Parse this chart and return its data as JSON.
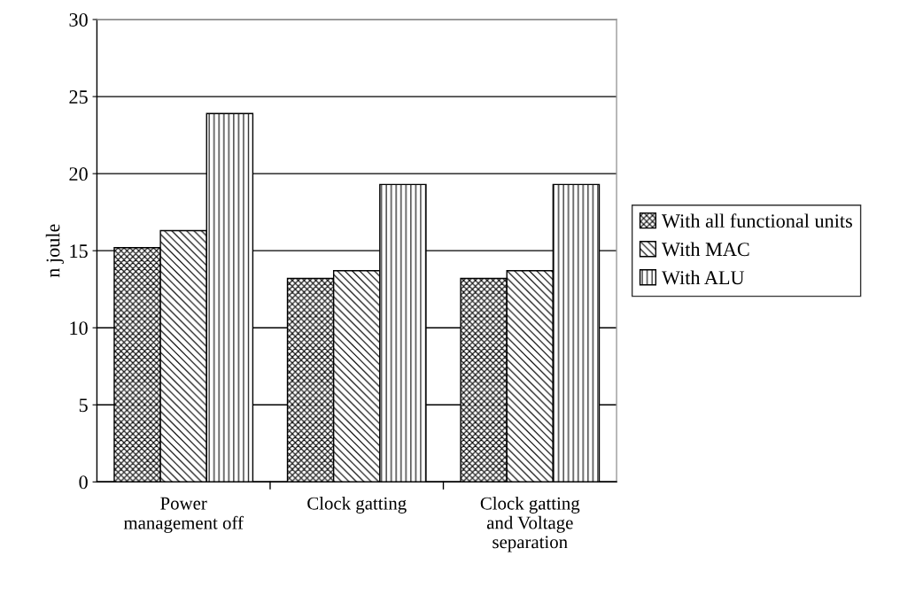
{
  "chart_data": {
    "type": "bar",
    "ylabel": "n joule",
    "categories": [
      "Power\nmanagement off",
      "Clock gatting",
      "Clock gatting\nand Voltage\nseparation"
    ],
    "series": [
      {
        "name": "With all functional units",
        "color": "#000000",
        "values": [
          15.2,
          13.2,
          13.2
        ]
      },
      {
        "name": "With MAC",
        "color": "#000000",
        "values": [
          16.3,
          13.7,
          13.7
        ]
      },
      {
        "name": "With ALU",
        "color": "#000000",
        "values": [
          23.9,
          19.3,
          19.3
        ]
      }
    ],
    "ylim": [
      0,
      30
    ],
    "yticks": [
      0,
      5,
      10,
      15,
      20,
      25,
      30
    ],
    "grid": "y",
    "legend": "right"
  }
}
